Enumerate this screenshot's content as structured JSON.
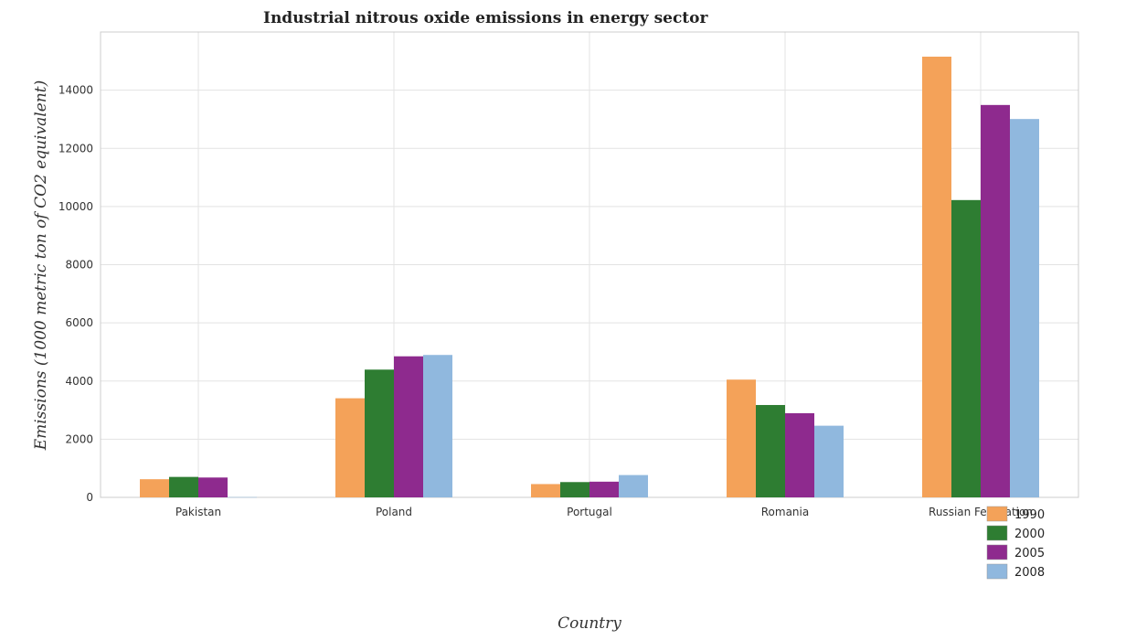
{
  "chart_data": {
    "type": "bar",
    "title": "Industrial nitrous oxide emissions in energy sector",
    "xlabel": "Country",
    "ylabel": "Emissions (1000 metric ton of CO2 equivalent)",
    "categories": [
      "Pakistan",
      "Poland",
      "Portugal",
      "Romania",
      "Russian Federation"
    ],
    "series": [
      {
        "name": "1990",
        "color": "#f4a259",
        "values": [
          624.1,
          3407.4,
          457.2,
          4048.8,
          15152.3
        ]
      },
      {
        "name": "2000",
        "color": "#2e7d32",
        "values": [
          703.1,
          4392.5,
          525.8,
          3175.6,
          10221.8
        ]
      },
      {
        "name": "2005",
        "color": "#8e2a8e",
        "values": [
          682.6,
          4849.8,
          539.4,
          2894.4,
          13490.6
        ]
      },
      {
        "name": "2008",
        "color": "#90b8de",
        "values": [
          9.2,
          4896.6,
          767.4,
          2463.5,
          13008.7
        ]
      }
    ],
    "yticks": [
      0,
      2000,
      4000,
      6000,
      8000,
      10000,
      12000,
      14000
    ],
    "ylim": [
      0,
      16000
    ],
    "grid": true,
    "legend_position": "bottom-right"
  }
}
